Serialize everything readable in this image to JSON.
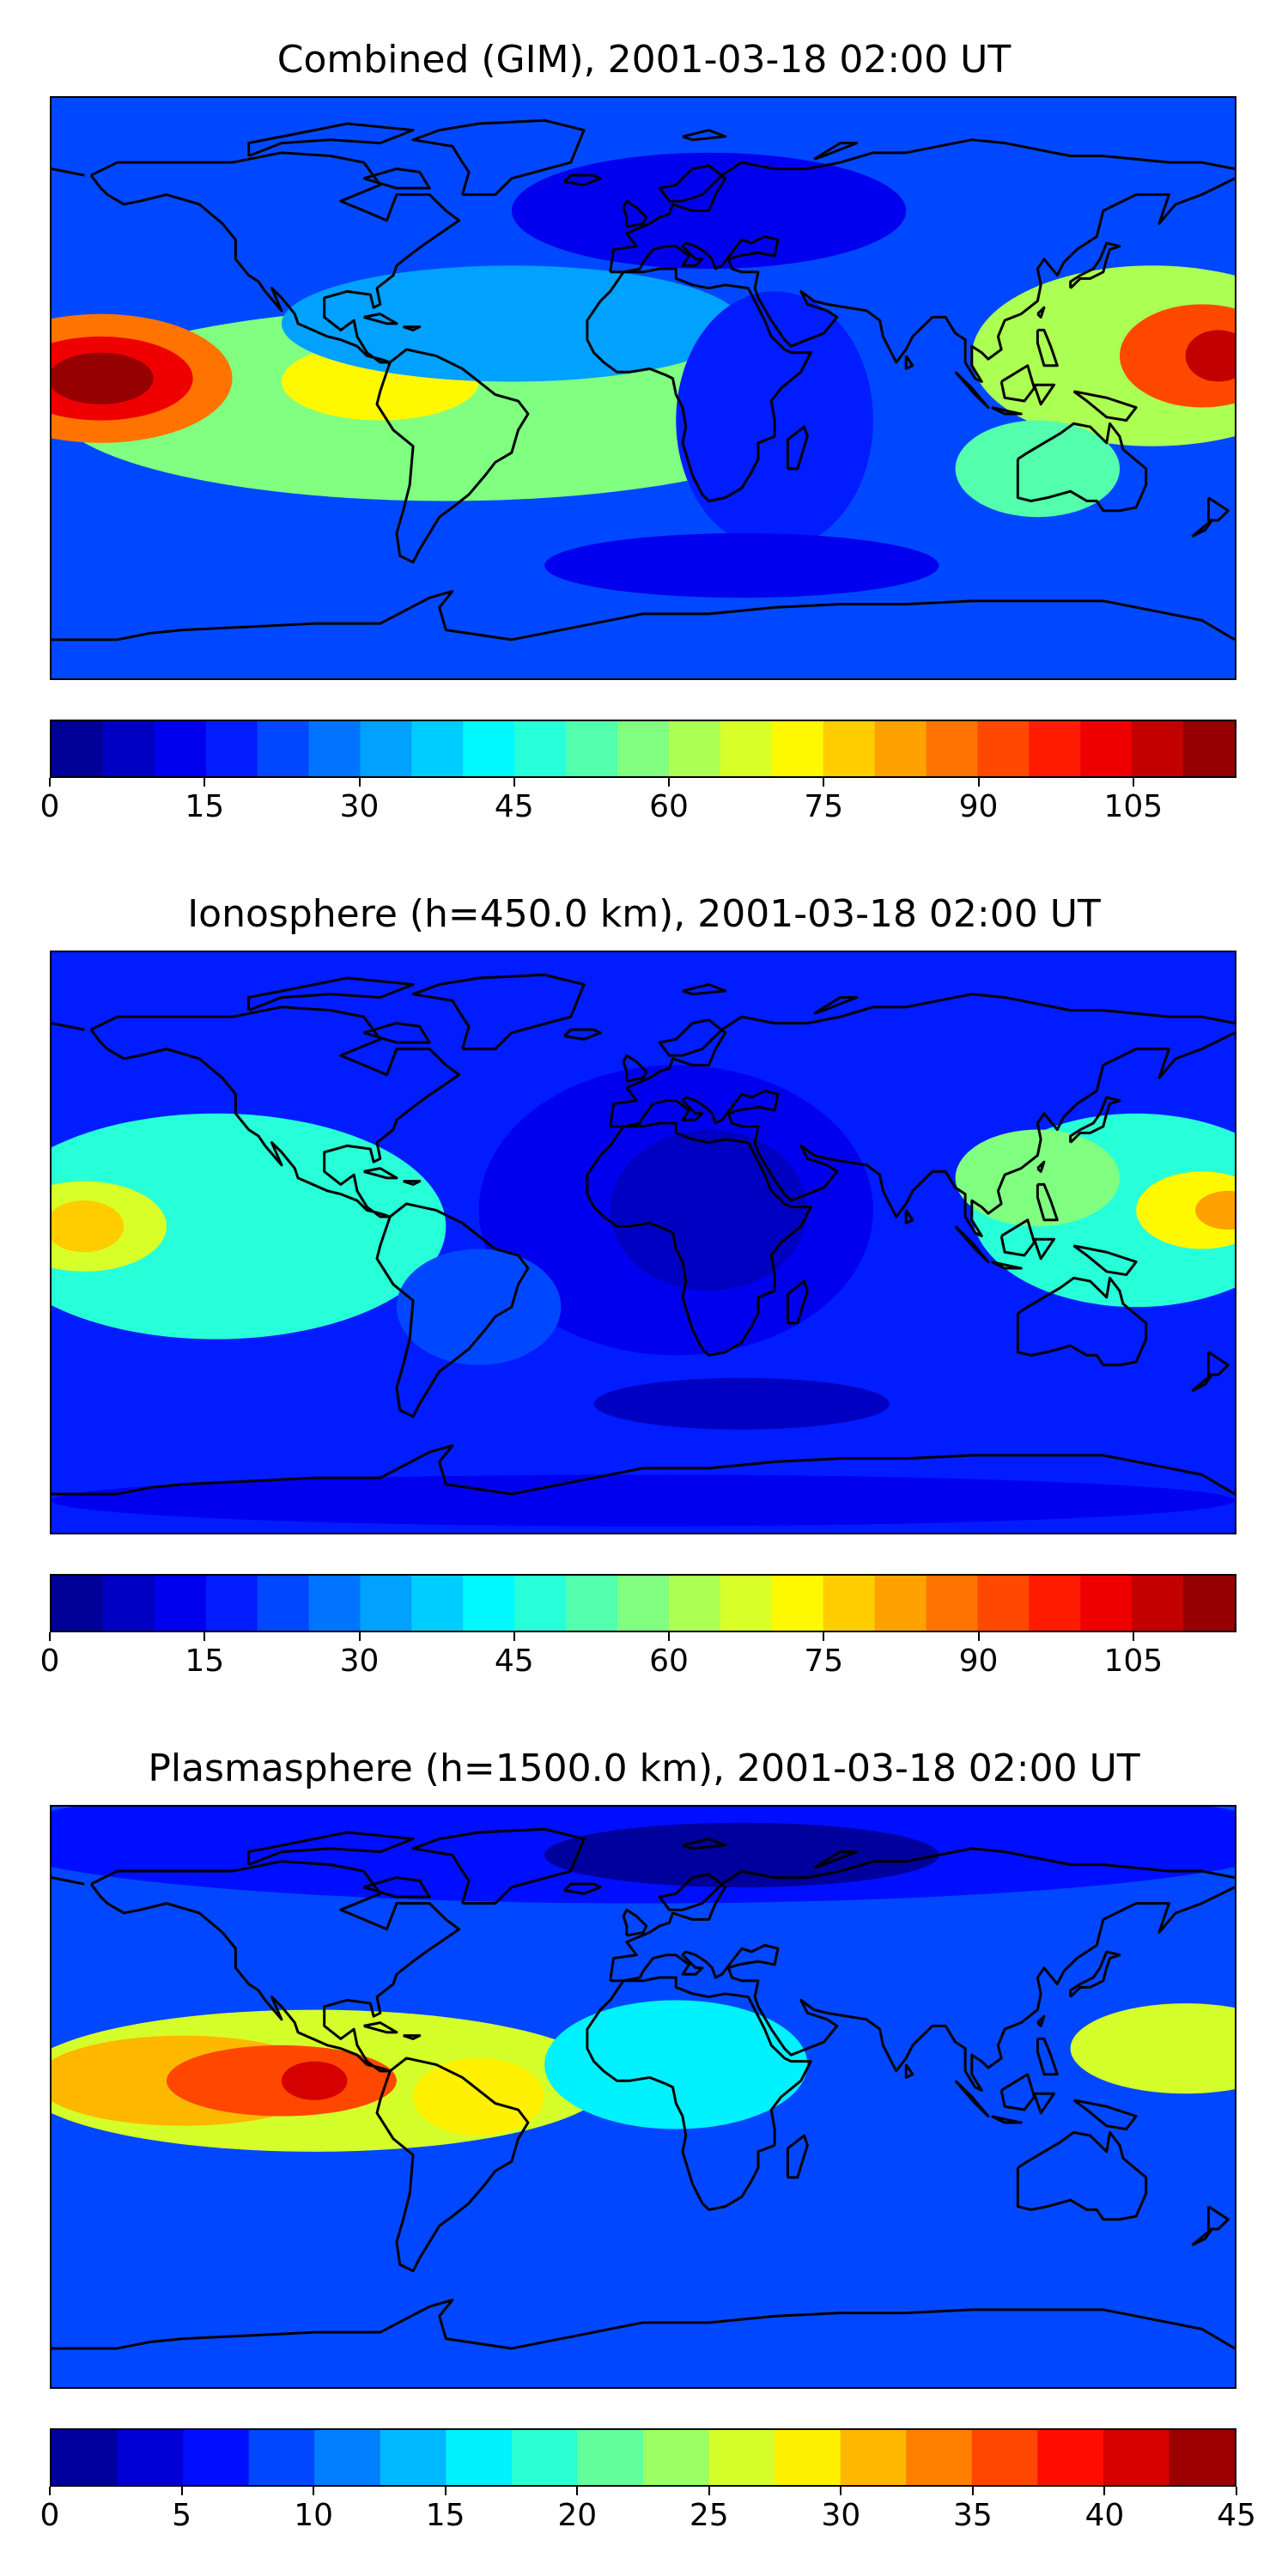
{
  "panels": [
    {
      "title": "Combined (GIM), 2001-03-18 02:00 UT",
      "colorbar": {
        "min": 0,
        "max": 115,
        "levels": 23,
        "tick_values": [
          0,
          15,
          30,
          45,
          60,
          75,
          90,
          105
        ],
        "tick_labels": [
          "0",
          "15",
          "30",
          "45",
          "60",
          "75",
          "90",
          "105"
        ]
      },
      "features": [
        {
          "lon": -165,
          "lat": 3,
          "value": 110
        },
        {
          "lon": 172,
          "lat": 10,
          "value": 108
        },
        {
          "lon": -80,
          "lat": 2,
          "value": 80
        },
        {
          "lon": 115,
          "lat": -25,
          "value": 60
        },
        {
          "lon": 20,
          "lat": 55,
          "value": 10
        },
        {
          "lon": 40,
          "lat": -10,
          "value": 15
        },
        {
          "lon": 0,
          "lat": -80,
          "value": 15
        }
      ]
    },
    {
      "title": "Ionosphere  (h=450.0 km), 2001-03-18 02:00 UT",
      "colorbar": {
        "min": 0,
        "max": 115,
        "levels": 23,
        "tick_values": [
          0,
          15,
          30,
          45,
          60,
          75,
          90,
          105
        ],
        "tick_labels": [
          "0",
          "15",
          "30",
          "45",
          "60",
          "75",
          "90",
          "105"
        ]
      },
      "features": [
        {
          "lon": -170,
          "lat": 5,
          "value": 75
        },
        {
          "lon": 175,
          "lat": 10,
          "value": 80
        },
        {
          "lon": 120,
          "lat": 15,
          "value": 60
        },
        {
          "lon": 20,
          "lat": 10,
          "value": 8
        },
        {
          "lon": 30,
          "lat": -50,
          "value": 5
        },
        {
          "lon": -50,
          "lat": -20,
          "value": 25
        }
      ]
    },
    {
      "title": "Plasmasphere (h=1500.0 km), 2001-03-18 02:00 UT",
      "colorbar": {
        "min": 0,
        "max": 45,
        "levels": 18,
        "tick_values": [
          0,
          5,
          10,
          15,
          20,
          25,
          30,
          35,
          40,
          45
        ],
        "tick_labels": [
          "0",
          "5",
          "10",
          "15",
          "20",
          "25",
          "30",
          "35",
          "40",
          "45"
        ]
      },
      "features": [
        {
          "lon": -150,
          "lat": 5,
          "value": 36
        },
        {
          "lon": -100,
          "lat": 5,
          "value": 41
        },
        {
          "lon": -50,
          "lat": 0,
          "value": 30
        },
        {
          "lon": 170,
          "lat": 15,
          "value": 28
        },
        {
          "lon": 0,
          "lat": 10,
          "value": 17
        },
        {
          "lon": 30,
          "lat": 75,
          "value": 3
        },
        {
          "lon": 120,
          "lat": -30,
          "value": 8
        }
      ]
    }
  ],
  "colormap": "jet",
  "projection": "PlateCarree",
  "coastlines": true
}
